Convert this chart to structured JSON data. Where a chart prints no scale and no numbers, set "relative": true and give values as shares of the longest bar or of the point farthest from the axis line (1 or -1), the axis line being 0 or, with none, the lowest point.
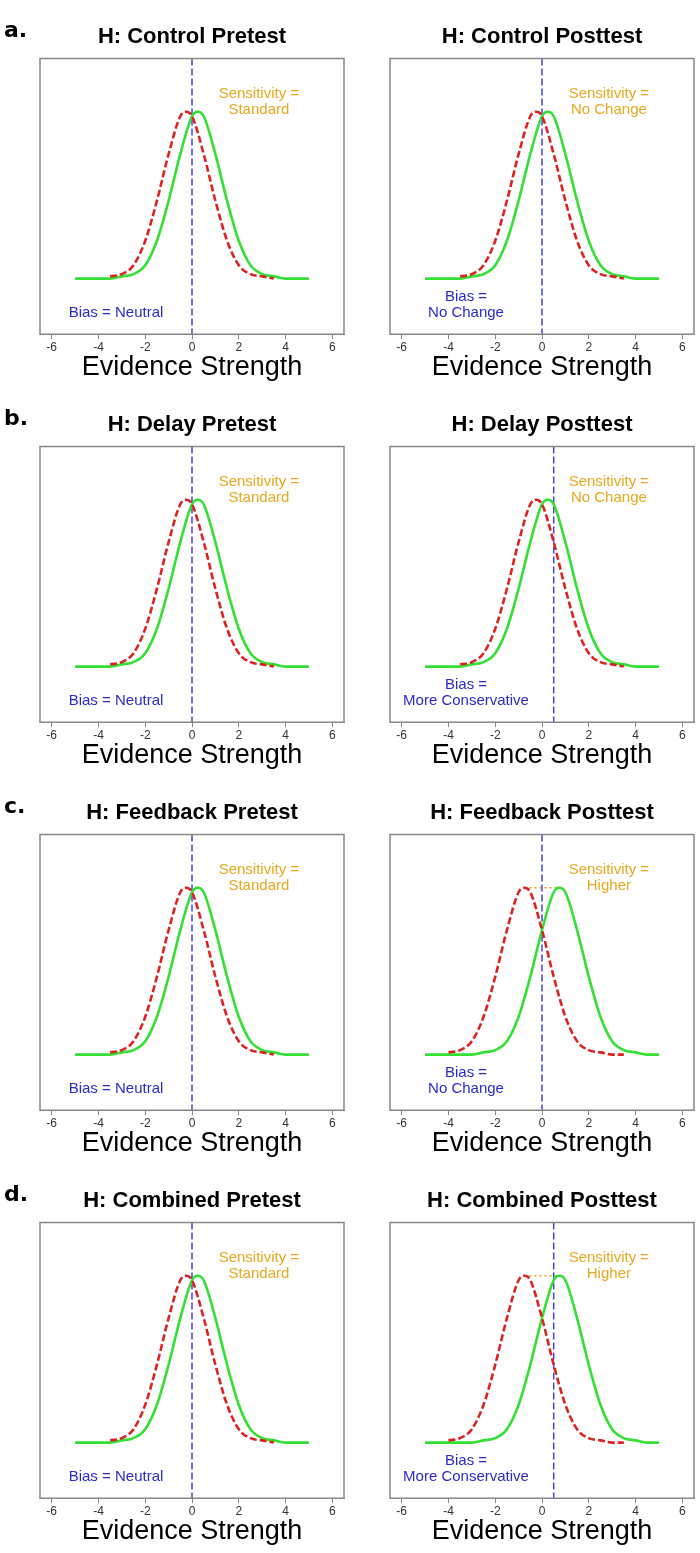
{
  "chart_data": [
    {
      "type": "line",
      "title": "H: Control Pretest",
      "xlabel": "Evidence Strength",
      "relative": true,
      "xlim": [
        -6.5,
        6.5
      ],
      "xticks": [
        -6,
        -4,
        -2,
        0,
        2,
        4,
        6
      ],
      "legend": false,
      "series": [
        {
          "color": "#dd2222",
          "line_style": "dashed",
          "x": [
            -3.5,
            -3,
            -2.5,
            -2,
            -1.5,
            -1,
            -0.5,
            -0.25,
            0,
            0.5,
            1,
            1.5,
            2,
            2.5,
            3,
            3.5
          ],
          "values": [
            0.26,
            0.27,
            0.31,
            0.42,
            0.6,
            0.81,
            0.98,
            1,
            0.98,
            0.81,
            0.6,
            0.42,
            0.31,
            0.27,
            0.26,
            0.25
          ]
        },
        {
          "color": "#33e033",
          "line_style": "solid",
          "x": [
            -5,
            -4.5,
            -4,
            -3.5,
            -3,
            -2.5,
            -2,
            -1.5,
            -1,
            -0.5,
            0,
            0.25,
            0.5,
            1,
            1.5,
            2,
            2.5,
            3,
            3.5,
            4,
            4.5,
            5
          ],
          "values": [
            0.25,
            0.25,
            0.25,
            0.25,
            0.26,
            0.27,
            0.31,
            0.42,
            0.6,
            0.81,
            0.98,
            1,
            0.98,
            0.81,
            0.6,
            0.42,
            0.31,
            0.27,
            0.26,
            0.25,
            0.25,
            0.25
          ]
        }
      ],
      "ref_lines": [
        {
          "axis": "x",
          "value": 0,
          "color": "#4444dd",
          "line_style": "dashed"
        }
      ],
      "annotations": [
        "Sensitivity =\nStandard",
        "Bias = Neutral",
        "a."
      ]
    },
    {
      "type": "line",
      "title": "H: Control Posttest",
      "xlabel": "Evidence Strength",
      "relative": true,
      "xlim": [
        -6.5,
        6.5
      ],
      "xticks": [
        -6,
        -4,
        -2,
        0,
        2,
        4,
        6
      ],
      "legend": false,
      "series": [
        {
          "color": "#dd2222",
          "line_style": "dashed",
          "x": [
            -3.5,
            -3,
            -2.5,
            -2,
            -1.5,
            -1,
            -0.5,
            -0.25,
            0,
            0.5,
            1,
            1.5,
            2,
            2.5,
            3,
            3.5
          ],
          "values": [
            0.26,
            0.27,
            0.31,
            0.42,
            0.6,
            0.81,
            0.98,
            1,
            0.98,
            0.81,
            0.6,
            0.42,
            0.31,
            0.27,
            0.26,
            0.25
          ]
        },
        {
          "color": "#33e033",
          "line_style": "solid",
          "x": [
            -5,
            -4.5,
            -4,
            -3.5,
            -3,
            -2.5,
            -2,
            -1.5,
            -1,
            -0.5,
            0,
            0.25,
            0.5,
            1,
            1.5,
            2,
            2.5,
            3,
            3.5,
            4,
            4.5,
            5
          ],
          "values": [
            0.25,
            0.25,
            0.25,
            0.25,
            0.26,
            0.27,
            0.31,
            0.42,
            0.6,
            0.81,
            0.98,
            1,
            0.98,
            0.81,
            0.6,
            0.42,
            0.31,
            0.27,
            0.26,
            0.25,
            0.25,
            0.25
          ]
        }
      ],
      "ref_lines": [
        {
          "axis": "x",
          "value": 0,
          "color": "#4444dd",
          "line_style": "dashed"
        }
      ],
      "annotations": [
        "Sensitivity =\nNo Change",
        "Bias =\nNo Change"
      ]
    },
    {
      "type": "line",
      "title": "H: Delay Pretest",
      "xlabel": "Evidence Strength",
      "relative": true,
      "xlim": [
        -6.5,
        6.5
      ],
      "xticks": [
        -6,
        -4,
        -2,
        0,
        2,
        4,
        6
      ],
      "legend": false,
      "series": [
        {
          "color": "#dd2222",
          "line_style": "dashed",
          "x": [
            -3.5,
            -3,
            -2.5,
            -2,
            -1.5,
            -1,
            -0.5,
            -0.25,
            0,
            0.5,
            1,
            1.5,
            2,
            2.5,
            3,
            3.5
          ],
          "values": [
            0.26,
            0.27,
            0.31,
            0.42,
            0.6,
            0.81,
            0.98,
            1,
            0.98,
            0.81,
            0.6,
            0.42,
            0.31,
            0.27,
            0.26,
            0.25
          ]
        },
        {
          "color": "#33e033",
          "line_style": "solid",
          "x": [
            -5,
            -4.5,
            -4,
            -3.5,
            -3,
            -2.5,
            -2,
            -1.5,
            -1,
            -0.5,
            0,
            0.25,
            0.5,
            1,
            1.5,
            2,
            2.5,
            3,
            3.5,
            4,
            4.5,
            5
          ],
          "values": [
            0.25,
            0.25,
            0.25,
            0.25,
            0.26,
            0.27,
            0.31,
            0.42,
            0.6,
            0.81,
            0.98,
            1,
            0.98,
            0.81,
            0.6,
            0.42,
            0.31,
            0.27,
            0.26,
            0.25,
            0.25,
            0.25
          ]
        }
      ],
      "ref_lines": [
        {
          "axis": "x",
          "value": 0,
          "color": "#4444dd",
          "line_style": "dashed"
        }
      ],
      "annotations": [
        "Sensitivity =\nStandard",
        "Bias = Neutral",
        "b."
      ]
    },
    {
      "type": "line",
      "title": "H: Delay Posttest",
      "xlabel": "Evidence Strength",
      "relative": true,
      "xlim": [
        -6.5,
        6.5
      ],
      "xticks": [
        -6,
        -4,
        -2,
        0,
        2,
        4,
        6
      ],
      "legend": false,
      "series": [
        {
          "color": "#dd2222",
          "line_style": "dashed",
          "x": [
            -3.5,
            -3,
            -2.5,
            -2,
            -1.5,
            -1,
            -0.5,
            -0.25,
            0,
            0.5,
            1,
            1.5,
            2,
            2.5,
            3,
            3.5
          ],
          "values": [
            0.26,
            0.27,
            0.31,
            0.42,
            0.6,
            0.81,
            0.98,
            1,
            0.98,
            0.81,
            0.6,
            0.42,
            0.31,
            0.27,
            0.26,
            0.25
          ]
        },
        {
          "color": "#33e033",
          "line_style": "solid",
          "x": [
            -5,
            -4.5,
            -4,
            -3.5,
            -3,
            -2.5,
            -2,
            -1.5,
            -1,
            -0.5,
            0,
            0.25,
            0.5,
            1,
            1.5,
            2,
            2.5,
            3,
            3.5,
            4,
            4.5,
            5
          ],
          "values": [
            0.25,
            0.25,
            0.25,
            0.25,
            0.26,
            0.27,
            0.31,
            0.42,
            0.6,
            0.81,
            0.98,
            1,
            0.98,
            0.81,
            0.6,
            0.42,
            0.31,
            0.27,
            0.26,
            0.25,
            0.25,
            0.25
          ]
        }
      ],
      "ref_lines": [
        {
          "axis": "x",
          "value": 0.5,
          "color": "#4444dd",
          "line_style": "dashed"
        }
      ],
      "annotations": [
        "Sensitivity =\nNo Change",
        "Bias =\nMore Conservative"
      ]
    },
    {
      "type": "line",
      "title": "H: Feedback Pretest",
      "xlabel": "Evidence Strength",
      "relative": true,
      "xlim": [
        -6.5,
        6.5
      ],
      "xticks": [
        -6,
        -4,
        -2,
        0,
        2,
        4,
        6
      ],
      "legend": false,
      "series": [
        {
          "color": "#dd2222",
          "line_style": "dashed",
          "x": [
            -3.5,
            -3,
            -2.5,
            -2,
            -1.5,
            -1,
            -0.5,
            -0.25,
            0,
            0.5,
            1,
            1.5,
            2,
            2.5,
            3,
            3.5
          ],
          "values": [
            0.26,
            0.27,
            0.31,
            0.42,
            0.6,
            0.81,
            0.98,
            1,
            0.98,
            0.81,
            0.6,
            0.42,
            0.31,
            0.27,
            0.26,
            0.25
          ]
        },
        {
          "color": "#33e033",
          "line_style": "solid",
          "x": [
            -5,
            -4.5,
            -4,
            -3.5,
            -3,
            -2.5,
            -2,
            -1.5,
            -1,
            -0.5,
            0,
            0.25,
            0.5,
            1,
            1.5,
            2,
            2.5,
            3,
            3.5,
            4,
            4.5,
            5
          ],
          "values": [
            0.25,
            0.25,
            0.25,
            0.25,
            0.26,
            0.27,
            0.31,
            0.42,
            0.6,
            0.81,
            0.98,
            1,
            0.98,
            0.81,
            0.6,
            0.42,
            0.31,
            0.27,
            0.26,
            0.25,
            0.25,
            0.25
          ]
        }
      ],
      "ref_lines": [
        {
          "axis": "x",
          "value": 0,
          "color": "#4444dd",
          "line_style": "dashed"
        }
      ],
      "annotations": [
        "Sensitivity =\nStandard",
        "Bias = Neutral",
        "c."
      ]
    },
    {
      "type": "line",
      "title": "H: Feedback Posttest",
      "xlabel": "Evidence Strength",
      "relative": true,
      "xlim": [
        -6.5,
        6.5
      ],
      "xticks": [
        -6,
        -4,
        -2,
        0,
        2,
        4,
        6
      ],
      "legend": false,
      "series": [
        {
          "color": "#dd2222",
          "line_style": "dashed",
          "x": [
            -4,
            -3.5,
            -3,
            -2.5,
            -2,
            -1.5,
            -1,
            -0.75,
            -0.5,
            0,
            0.5,
            1,
            1.5,
            2,
            2.5,
            3,
            3.5
          ],
          "values": [
            0.26,
            0.27,
            0.31,
            0.42,
            0.6,
            0.81,
            0.98,
            1,
            0.98,
            0.81,
            0.6,
            0.42,
            0.31,
            0.27,
            0.26,
            0.25,
            0.25
          ]
        },
        {
          "color": "#33e033",
          "line_style": "solid",
          "x": [
            -5,
            -4.5,
            -4,
            -3.5,
            -3,
            -2.5,
            -2,
            -1.5,
            -1,
            -0.5,
            0,
            0.5,
            0.75,
            1,
            1.5,
            2,
            2.5,
            3,
            3.5,
            4,
            4.5,
            5
          ],
          "values": [
            0.25,
            0.25,
            0.25,
            0.25,
            0.25,
            0.26,
            0.27,
            0.31,
            0.42,
            0.6,
            0.81,
            0.98,
            1,
            0.98,
            0.81,
            0.6,
            0.42,
            0.31,
            0.27,
            0.26,
            0.25,
            0.25
          ]
        },
        {
          "color": "#e0a020",
          "line_style": "dotted",
          "x": [
            -0.75,
            0.75
          ],
          "values": [
            1,
            1
          ]
        }
      ],
      "ref_lines": [
        {
          "axis": "x",
          "value": 0,
          "color": "#4444dd",
          "line_style": "dashed"
        }
      ],
      "annotations": [
        "Sensitivity =\nHigher",
        "Bias =\nNo Change"
      ]
    },
    {
      "type": "line",
      "title": "H: Combined Pretest",
      "xlabel": "Evidence Strength",
      "relative": true,
      "xlim": [
        -6.5,
        6.5
      ],
      "xticks": [
        -6,
        -4,
        -2,
        0,
        2,
        4,
        6
      ],
      "legend": false,
      "series": [
        {
          "color": "#dd2222",
          "line_style": "dashed",
          "x": [
            -3.5,
            -3,
            -2.5,
            -2,
            -1.5,
            -1,
            -0.5,
            -0.25,
            0,
            0.5,
            1,
            1.5,
            2,
            2.5,
            3,
            3.5
          ],
          "values": [
            0.26,
            0.27,
            0.31,
            0.42,
            0.6,
            0.81,
            0.98,
            1,
            0.98,
            0.81,
            0.6,
            0.42,
            0.31,
            0.27,
            0.26,
            0.25
          ]
        },
        {
          "color": "#33e033",
          "line_style": "solid",
          "x": [
            -5,
            -4.5,
            -4,
            -3.5,
            -3,
            -2.5,
            -2,
            -1.5,
            -1,
            -0.5,
            0,
            0.25,
            0.5,
            1,
            1.5,
            2,
            2.5,
            3,
            3.5,
            4,
            4.5,
            5
          ],
          "values": [
            0.25,
            0.25,
            0.25,
            0.25,
            0.26,
            0.27,
            0.31,
            0.42,
            0.6,
            0.81,
            0.98,
            1,
            0.98,
            0.81,
            0.6,
            0.42,
            0.31,
            0.27,
            0.26,
            0.25,
            0.25,
            0.25
          ]
        }
      ],
      "ref_lines": [
        {
          "axis": "x",
          "value": 0,
          "color": "#4444dd",
          "line_style": "dashed"
        }
      ],
      "annotations": [
        "Sensitivity =\nStandard",
        "Bias = Neutral",
        "d."
      ]
    },
    {
      "type": "line",
      "title": "H: Combined Posttest",
      "xlabel": "Evidence Strength",
      "relative": true,
      "xlim": [
        -6.5,
        6.5
      ],
      "xticks": [
        -6,
        -4,
        -2,
        0,
        2,
        4,
        6
      ],
      "legend": false,
      "series": [
        {
          "color": "#dd2222",
          "line_style": "dashed",
          "x": [
            -4,
            -3.5,
            -3,
            -2.5,
            -2,
            -1.5,
            -1,
            -0.75,
            -0.5,
            0,
            0.5,
            1,
            1.5,
            2,
            2.5,
            3,
            3.5
          ],
          "values": [
            0.26,
            0.27,
            0.31,
            0.42,
            0.6,
            0.81,
            0.98,
            1,
            0.98,
            0.81,
            0.6,
            0.42,
            0.31,
            0.27,
            0.26,
            0.25,
            0.25
          ]
        },
        {
          "color": "#33e033",
          "line_style": "solid",
          "x": [
            -5,
            -4.5,
            -4,
            -3.5,
            -3,
            -2.5,
            -2,
            -1.5,
            -1,
            -0.5,
            0,
            0.5,
            0.75,
            1,
            1.5,
            2,
            2.5,
            3,
            3.5,
            4,
            4.5,
            5
          ],
          "values": [
            0.25,
            0.25,
            0.25,
            0.25,
            0.25,
            0.26,
            0.27,
            0.31,
            0.42,
            0.6,
            0.81,
            0.98,
            1,
            0.98,
            0.81,
            0.6,
            0.42,
            0.31,
            0.27,
            0.26,
            0.25,
            0.25
          ]
        },
        {
          "color": "#e0a020",
          "line_style": "dotted",
          "x": [
            -0.75,
            0.75
          ],
          "values": [
            1,
            1
          ]
        }
      ],
      "ref_lines": [
        {
          "axis": "x",
          "value": 0.5,
          "color": "#4444dd",
          "line_style": "dashed"
        }
      ],
      "annotations": [
        "Sensitivity =\nHigher",
        "Bias =\nMore Conservative"
      ]
    }
  ]
}
